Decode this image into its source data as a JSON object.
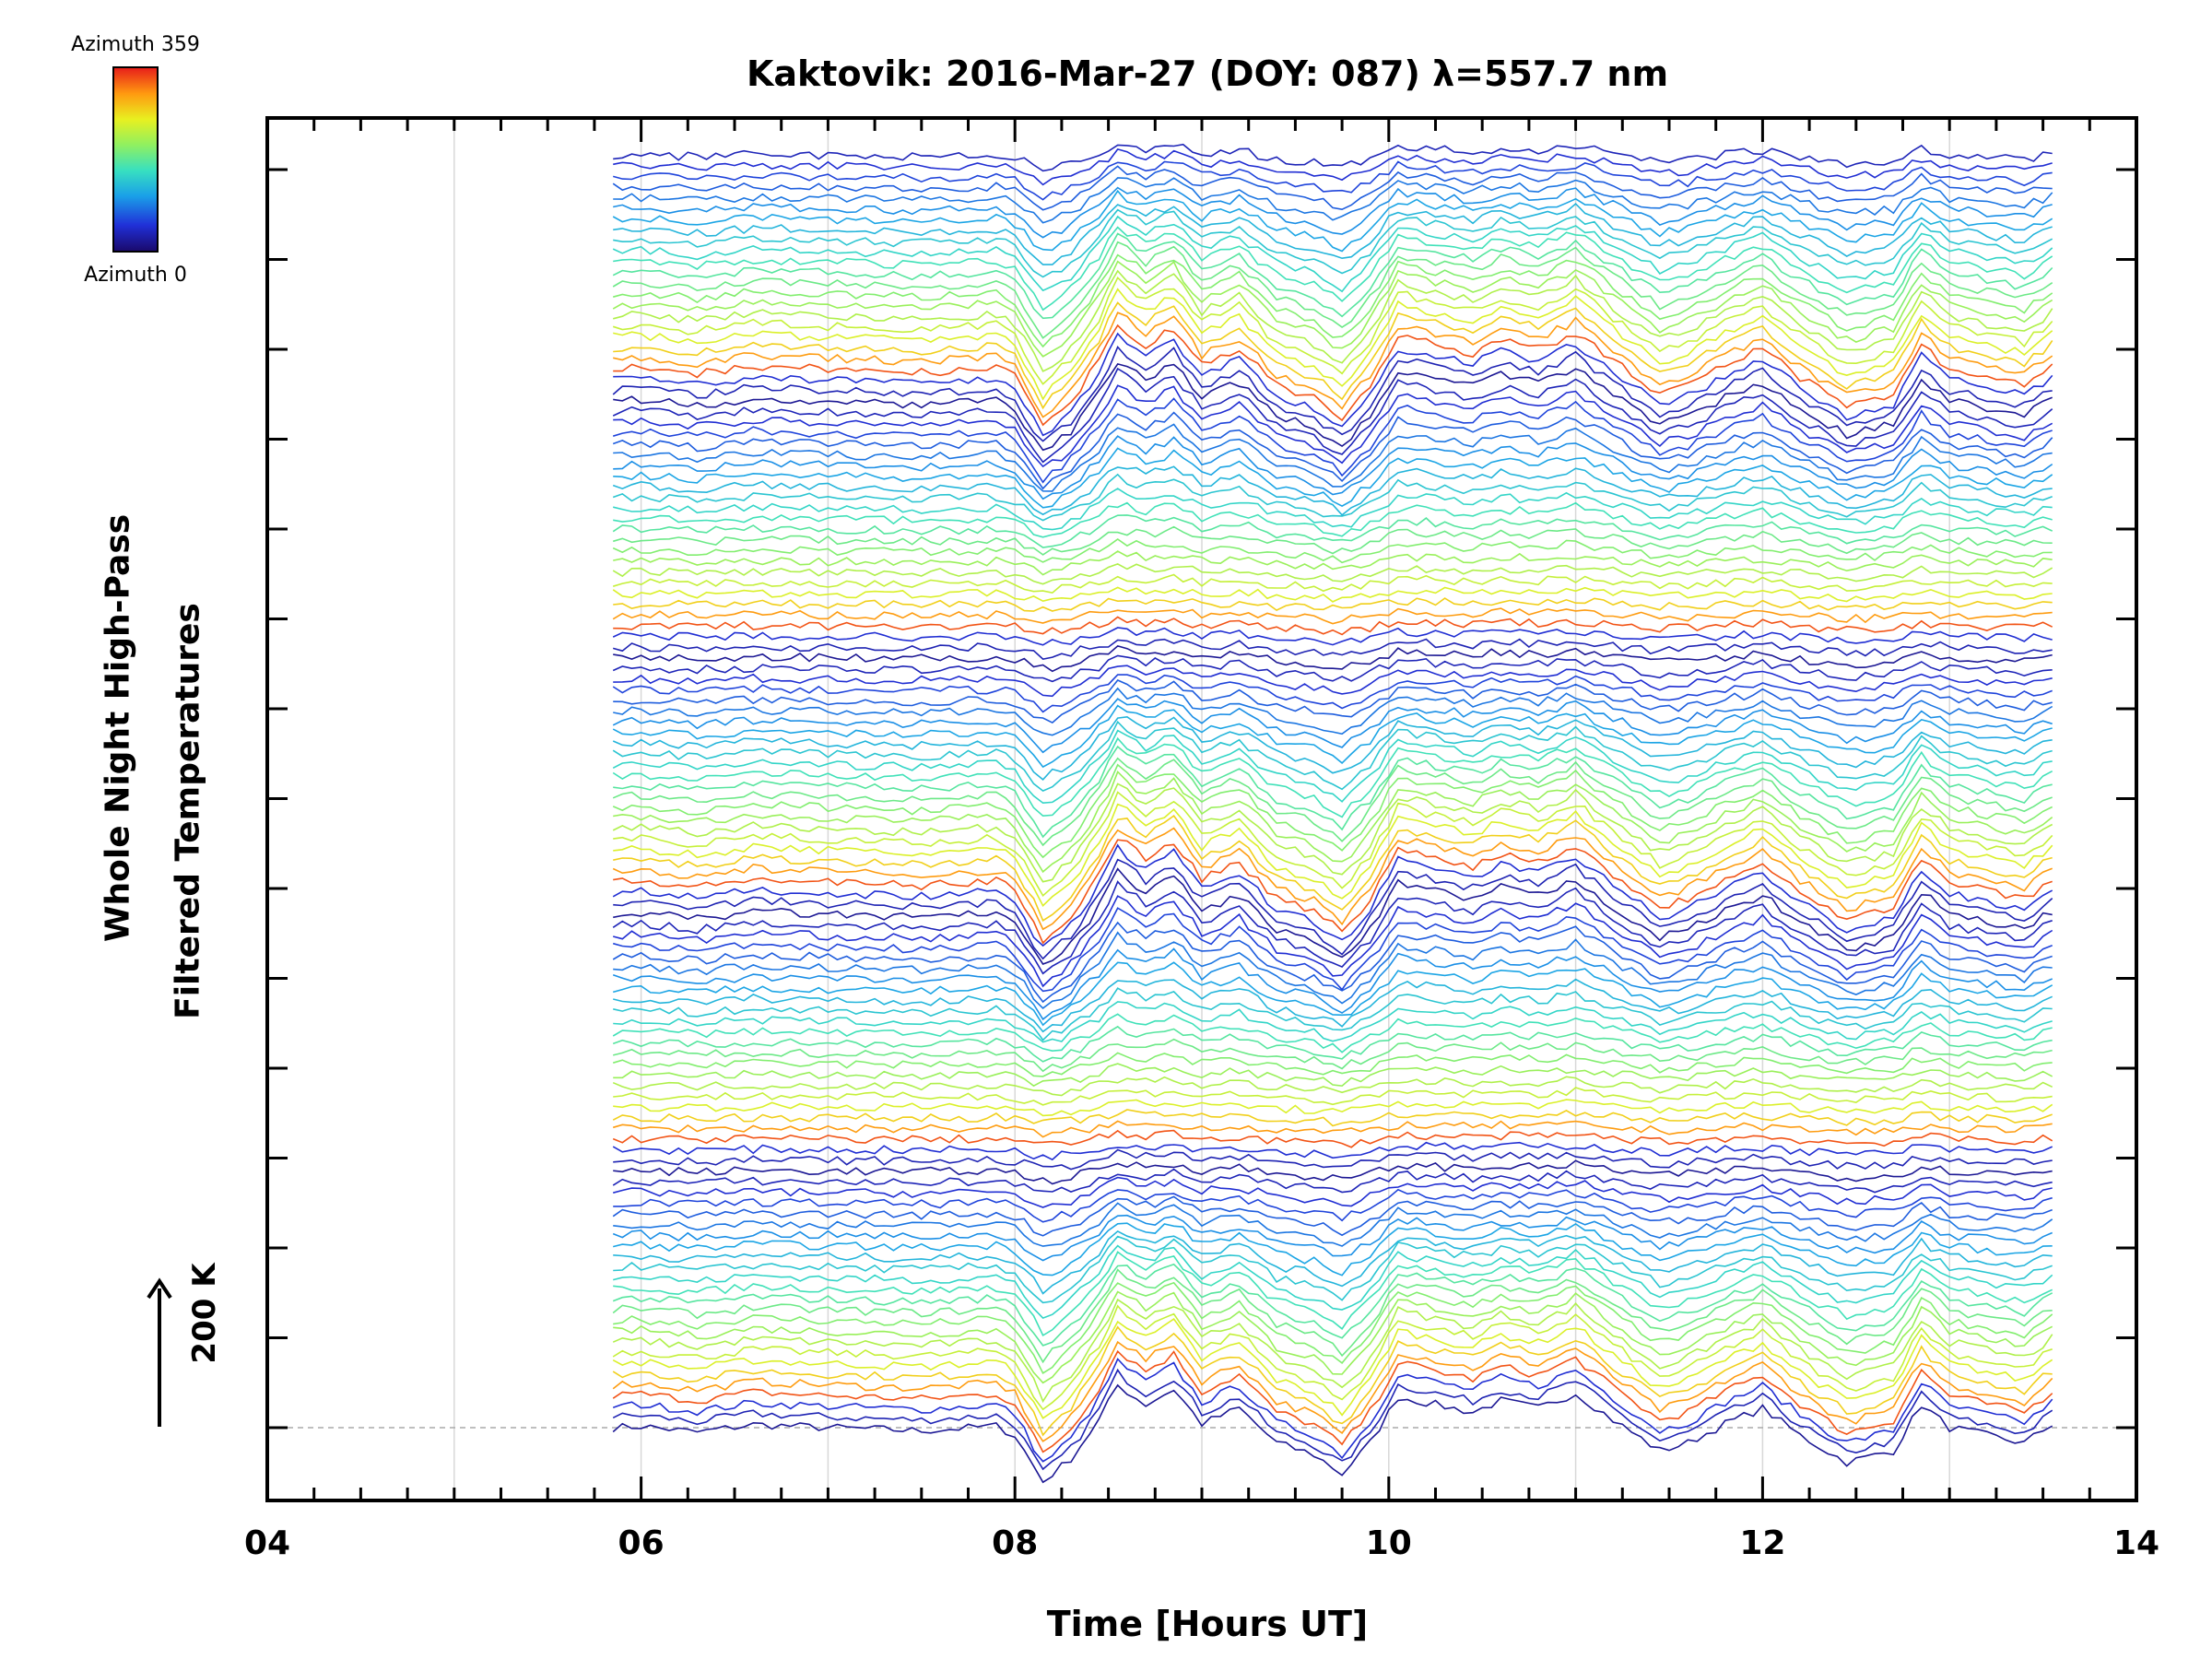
{
  "chart_data": {
    "type": "line",
    "title": "Kaktovik: 2016-Mar-27 (DOY: 087) λ=557.7 nm",
    "xlabel": "Time [Hours UT]",
    "ylabel_line1": "Whole Night High-Pass",
    "ylabel_line2": "Filtered Temperatures",
    "xlim": [
      4,
      14
    ],
    "xticks": [
      "04",
      "06",
      "08",
      "10",
      "12",
      "14"
    ],
    "scale_bar_label": "200 K",
    "legend": {
      "top_label": "Azimuth 359",
      "bottom_label": "Azimuth 0"
    },
    "grid": "vertical gridlines at each hour",
    "series_description_note_omitted": true,
    "stacked_series_count": 120,
    "time_start": 5.85,
    "time_end": 13.55,
    "common_signal": {
      "x": [
        5.85,
        6.0,
        6.3,
        6.6,
        7.0,
        7.5,
        7.9,
        8.0,
        8.15,
        8.3,
        8.45,
        8.55,
        8.7,
        8.85,
        9.0,
        9.2,
        9.4,
        9.6,
        9.75,
        9.9,
        10.05,
        10.25,
        10.45,
        10.6,
        10.8,
        11.0,
        11.2,
        11.45,
        11.6,
        11.8,
        12.0,
        12.2,
        12.45,
        12.7,
        12.85,
        13.0,
        13.2,
        13.4,
        13.55
      ],
      "y": [
        0,
        2,
        -6,
        4,
        0,
        -4,
        2,
        -10,
        -70,
        -40,
        10,
        55,
        30,
        50,
        5,
        25,
        -20,
        -35,
        -60,
        -20,
        40,
        30,
        20,
        35,
        25,
        45,
        10,
        -30,
        -20,
        5,
        25,
        -10,
        -45,
        -30,
        30,
        0,
        -10,
        -20,
        5
      ]
    }
  }
}
